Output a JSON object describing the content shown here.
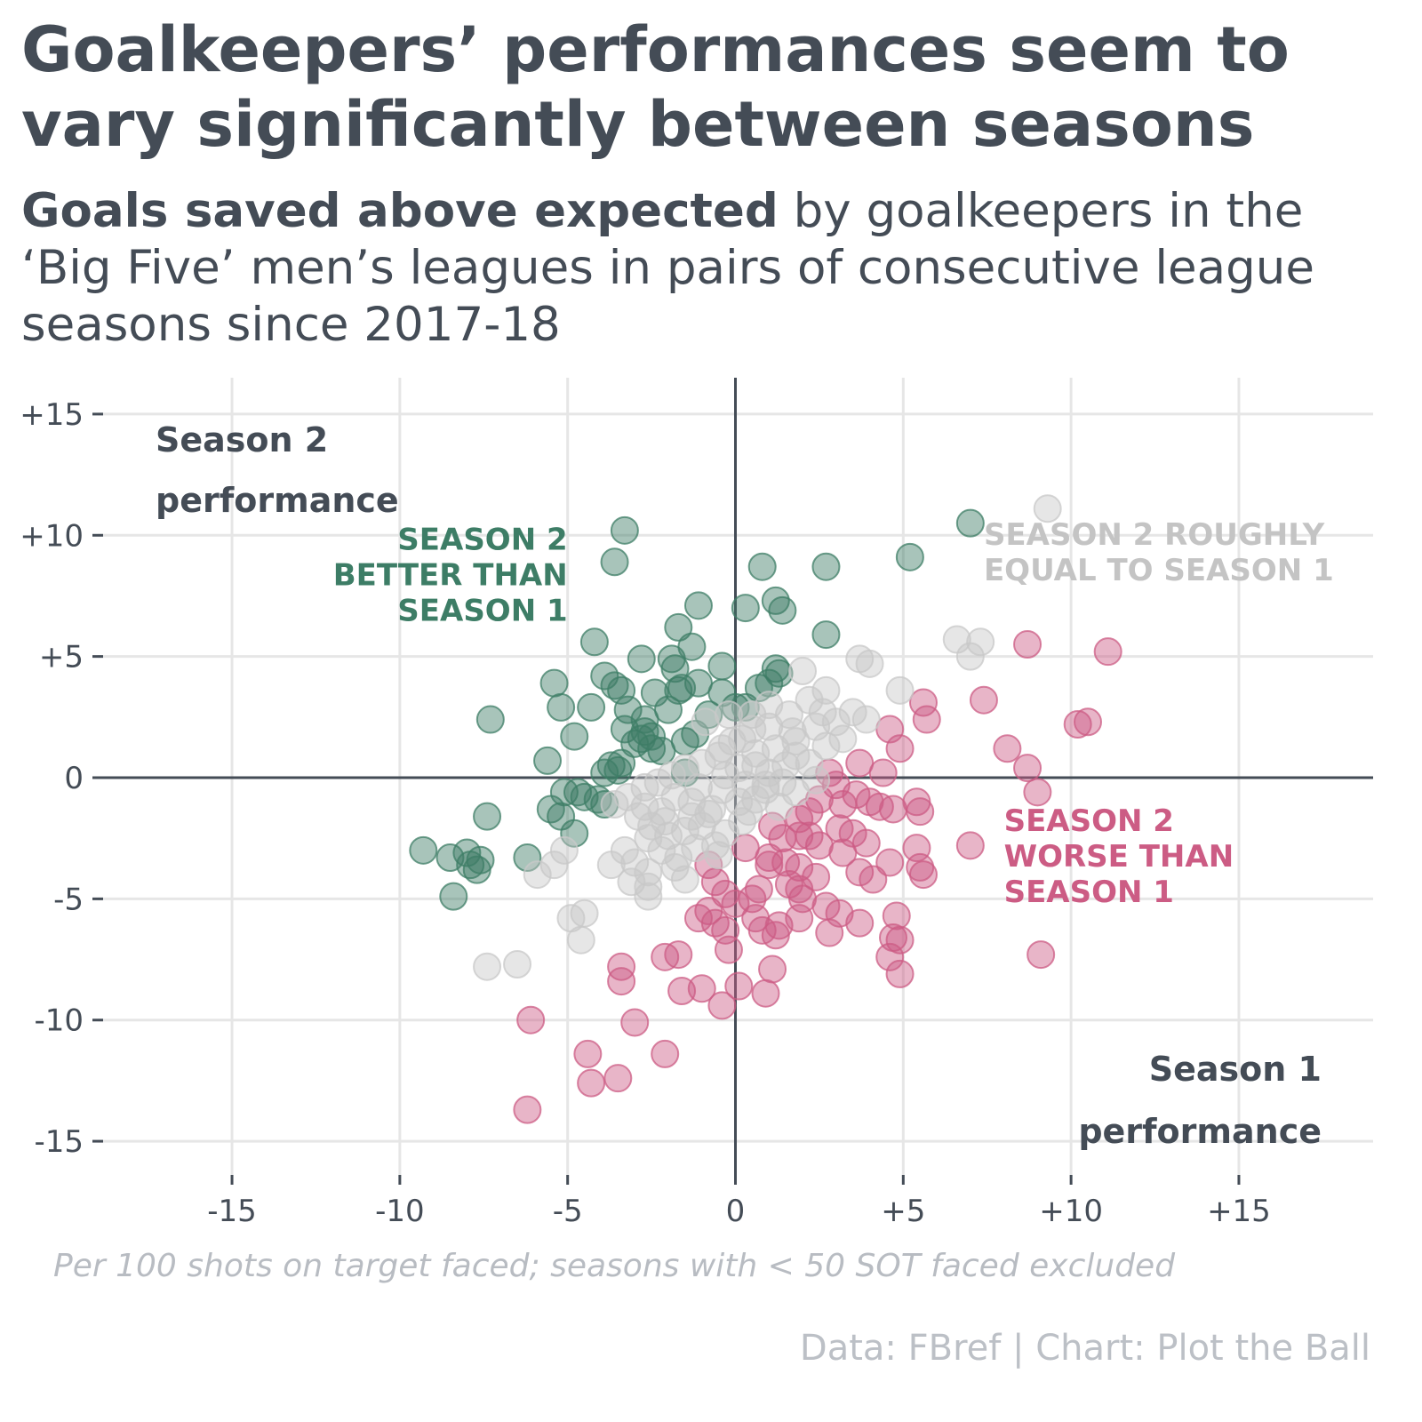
{
  "title": "Goalkeepers’ performances seem to vary significantly between seasons",
  "subtitle": {
    "bold": "Goals saved above expected",
    "rest": " by goalkeepers in the ‘Big Five’ men’s leagues in pairs of consecutive league seasons since 2017-18"
  },
  "note": "Per 100 shots on target faced; seasons with < 50 SOT faced excluded",
  "source": "Data: FBref | Chart: Plot the Ball",
  "colors": {
    "better": "#3d7d66",
    "worse": "#cc5c84",
    "equal": "#c8c8c8",
    "text": "#444c56",
    "grid": "#e6e6e6"
  },
  "chart_data": {
    "type": "scatter",
    "xlabel": "Season 1 performance",
    "ylabel": "Season 2 performance",
    "xlim": [
      -19,
      19
    ],
    "ylim": [
      -16.5,
      16.5
    ],
    "grid": true,
    "xticks": [
      -15,
      -10,
      -5,
      0,
      5,
      10,
      15
    ],
    "yticks": [
      15,
      10,
      5,
      0,
      -5,
      -10,
      -15
    ],
    "xtick_labels": [
      "-15",
      "-10",
      "-5",
      "0",
      "+5",
      "+10",
      "+15"
    ],
    "ytick_labels": [
      "+15",
      "+10",
      "+5",
      "0",
      "-5",
      "-10",
      "-15"
    ],
    "annotations": [
      {
        "text": "SEASON 2 BETTER THAN SEASON 1",
        "lines": [
          "SEASON 2",
          "BETTER THAN",
          "SEASON 1"
        ],
        "category": "better",
        "x": -5,
        "y": 9.4
      },
      {
        "text": "SEASON 2 ROUGHLY EQUAL TO SEASON 1",
        "lines": [
          "SEASON 2 ROUGHLY",
          "EQUAL TO SEASON 1"
        ],
        "category": "equal",
        "x": 7.4,
        "y": 9.6
      },
      {
        "text": "SEASON 2 WORSE THAN SEASON 1",
        "lines": [
          "SEASON 2",
          "WORSE THAN",
          "SEASON 1"
        ],
        "category": "worse",
        "x": 8,
        "y": -2.2
      }
    ],
    "series": [
      {
        "category": "better",
        "points": [
          [
            -3.3,
            10.2
          ],
          [
            -3.6,
            8.9
          ],
          [
            0.8,
            8.7
          ],
          [
            2.7,
            8.7
          ],
          [
            7.0,
            10.5
          ],
          [
            5.2,
            9.1
          ],
          [
            -1.1,
            7.1
          ],
          [
            0.3,
            7.0
          ],
          [
            1.2,
            7.3
          ],
          [
            1.4,
            6.9
          ],
          [
            -1.7,
            6.2
          ],
          [
            2.7,
            5.9
          ],
          [
            -4.2,
            5.6
          ],
          [
            -1.3,
            5.4
          ],
          [
            -2.8,
            4.9
          ],
          [
            -1.9,
            4.9
          ],
          [
            -0.4,
            4.6
          ],
          [
            -1.8,
            4.5
          ],
          [
            1.2,
            4.5
          ],
          [
            1.3,
            4.3
          ],
          [
            -5.4,
            3.9
          ],
          [
            -3.9,
            4.2
          ],
          [
            -3.6,
            3.8
          ],
          [
            -3.4,
            3.6
          ],
          [
            -1.1,
            3.9
          ],
          [
            0.7,
            3.7
          ],
          [
            1.0,
            3.9
          ],
          [
            -2.4,
            3.5
          ],
          [
            -1.7,
            3.6
          ],
          [
            -0.4,
            3.5
          ],
          [
            -5.2,
            2.9
          ],
          [
            -4.3,
            2.9
          ],
          [
            -3.2,
            2.8
          ],
          [
            -2.7,
            2.4
          ],
          [
            -2.0,
            2.8
          ],
          [
            -1.6,
            3.7
          ],
          [
            -0.8,
            2.6
          ],
          [
            0.0,
            2.9
          ],
          [
            0.3,
            2.9
          ],
          [
            -7.3,
            2.4
          ],
          [
            -4.8,
            1.7
          ],
          [
            -3.3,
            2.0
          ],
          [
            -2.7,
            1.9
          ],
          [
            -2.5,
            1.7
          ],
          [
            -3.0,
            1.4
          ],
          [
            -2.2,
            1.1
          ],
          [
            -1.5,
            1.5
          ],
          [
            -1.2,
            1.8
          ],
          [
            -5.6,
            0.7
          ],
          [
            -3.7,
            0.5
          ],
          [
            -3.4,
            0.6
          ],
          [
            -3.9,
            0.2
          ],
          [
            -1.5,
            0.2
          ],
          [
            -5.1,
            -0.6
          ],
          [
            -4.7,
            -0.6
          ],
          [
            -4.5,
            -0.8
          ],
          [
            -4.1,
            -0.9
          ],
          [
            -3.9,
            -1.1
          ],
          [
            -5.5,
            -1.3
          ],
          [
            -5.2,
            -1.6
          ],
          [
            -4.8,
            -2.3
          ],
          [
            -7.4,
            -1.6
          ],
          [
            -9.3,
            -3.0
          ],
          [
            -8.5,
            -3.3
          ],
          [
            -8.0,
            -3.1
          ],
          [
            -7.9,
            -3.6
          ],
          [
            -7.7,
            -3.8
          ],
          [
            -7.6,
            -3.4
          ],
          [
            -6.2,
            -3.3
          ],
          [
            -8.4,
            -4.9
          ],
          [
            -2.8,
            1.6
          ],
          [
            -2.5,
            1.2
          ],
          [
            -3.5,
            0.3
          ]
        ]
      },
      {
        "category": "worse",
        "points": [
          [
            8.7,
            5.5
          ],
          [
            11.1,
            5.2
          ],
          [
            7.4,
            3.2
          ],
          [
            5.6,
            3.1
          ],
          [
            5.7,
            2.4
          ],
          [
            8.1,
            1.2
          ],
          [
            10.2,
            2.2
          ],
          [
            10.5,
            2.3
          ],
          [
            4.6,
            2.0
          ],
          [
            4.9,
            1.2
          ],
          [
            8.7,
            0.4
          ],
          [
            9.0,
            -0.6
          ],
          [
            3.7,
            0.6
          ],
          [
            4.4,
            0.2
          ],
          [
            2.8,
            0.2
          ],
          [
            3.0,
            -0.3
          ],
          [
            2.5,
            -0.9
          ],
          [
            2.2,
            -1.4
          ],
          [
            1.9,
            -1.7
          ],
          [
            3.6,
            -0.7
          ],
          [
            3.2,
            -1.1
          ],
          [
            4.0,
            -1.0
          ],
          [
            4.3,
            -1.2
          ],
          [
            4.7,
            -1.3
          ],
          [
            5.4,
            -1.0
          ],
          [
            5.5,
            -1.4
          ],
          [
            1.1,
            -2.0
          ],
          [
            1.4,
            -2.5
          ],
          [
            1.9,
            -2.4
          ],
          [
            2.2,
            -2.4
          ],
          [
            3.1,
            -2.1
          ],
          [
            3.5,
            -2.3
          ],
          [
            3.9,
            -2.7
          ],
          [
            2.5,
            -2.8
          ],
          [
            3.2,
            -3.1
          ],
          [
            0.3,
            -2.9
          ],
          [
            1.0,
            -3.3
          ],
          [
            1.5,
            -3.5
          ],
          [
            1.9,
            -3.7
          ],
          [
            3.7,
            -3.9
          ],
          [
            4.1,
            -4.2
          ],
          [
            4.6,
            -3.5
          ],
          [
            5.4,
            -2.9
          ],
          [
            5.5,
            -3.7
          ],
          [
            5.6,
            -4.0
          ],
          [
            7.0,
            -2.8
          ],
          [
            -0.8,
            -3.6
          ],
          [
            -0.6,
            -4.3
          ],
          [
            -0.3,
            -4.8
          ],
          [
            0.0,
            -5.2
          ],
          [
            0.5,
            -5.0
          ],
          [
            0.7,
            -4.6
          ],
          [
            1.0,
            -3.6
          ],
          [
            1.6,
            -4.4
          ],
          [
            1.9,
            -4.6
          ],
          [
            2.4,
            -4.1
          ],
          [
            -0.8,
            -5.5
          ],
          [
            -1.1,
            -5.8
          ],
          [
            -0.6,
            -6.0
          ],
          [
            -0.3,
            -6.3
          ],
          [
            0.6,
            -5.8
          ],
          [
            0.8,
            -6.3
          ],
          [
            1.3,
            -6.1
          ],
          [
            1.9,
            -5.8
          ],
          [
            2.7,
            -5.3
          ],
          [
            3.1,
            -5.6
          ],
          [
            3.7,
            -6.0
          ],
          [
            4.8,
            -5.7
          ],
          [
            2.8,
            -6.4
          ],
          [
            4.7,
            -6.6
          ],
          [
            4.9,
            -6.7
          ],
          [
            4.6,
            -7.4
          ],
          [
            4.9,
            -8.1
          ],
          [
            9.1,
            -7.3
          ],
          [
            -0.2,
            -7.1
          ],
          [
            -1.7,
            -7.3
          ],
          [
            -2.1,
            -7.4
          ],
          [
            -3.4,
            -7.8
          ],
          [
            -3.4,
            -8.4
          ],
          [
            -1.6,
            -8.8
          ],
          [
            -1.0,
            -8.7
          ],
          [
            0.1,
            -8.6
          ],
          [
            0.9,
            -8.9
          ],
          [
            1.1,
            -7.9
          ],
          [
            -0.4,
            -9.4
          ],
          [
            -6.1,
            -10.0
          ],
          [
            -3.0,
            -10.1
          ],
          [
            -4.4,
            -11.4
          ],
          [
            -2.1,
            -11.4
          ],
          [
            -4.3,
            -12.6
          ],
          [
            -3.5,
            -12.4
          ],
          [
            -6.2,
            -13.7
          ],
          [
            1.2,
            -6.5
          ],
          [
            2.0,
            -5.0
          ]
        ]
      },
      {
        "category": "equal",
        "points": [
          [
            9.3,
            11.1
          ],
          [
            6.6,
            5.7
          ],
          [
            7.3,
            5.6
          ],
          [
            7.0,
            5.0
          ],
          [
            3.7,
            4.9
          ],
          [
            4.0,
            4.7
          ],
          [
            2.0,
            4.4
          ],
          [
            2.7,
            3.6
          ],
          [
            2.2,
            3.2
          ],
          [
            4.9,
            3.6
          ],
          [
            1.6,
            2.6
          ],
          [
            2.6,
            2.7
          ],
          [
            3.5,
            2.7
          ],
          [
            3.9,
            2.4
          ],
          [
            1.0,
            2.1
          ],
          [
            0.5,
            2.0
          ],
          [
            1.8,
            1.5
          ],
          [
            2.7,
            1.3
          ],
          [
            3.2,
            1.6
          ],
          [
            0.2,
            1.6
          ],
          [
            -0.1,
            1.5
          ],
          [
            -0.4,
            1.2
          ],
          [
            0.6,
            1.0
          ],
          [
            1.2,
            1.2
          ],
          [
            1.8,
            0.9
          ],
          [
            2.2,
            0.6
          ],
          [
            -0.5,
            0.9
          ],
          [
            -1.0,
            0.6
          ],
          [
            -1.5,
            0.4
          ],
          [
            -1.9,
            0.1
          ],
          [
            0.1,
            0.4
          ],
          [
            0.6,
            0.5
          ],
          [
            1.0,
            0.2
          ],
          [
            -0.3,
            0.1
          ],
          [
            -2.3,
            -0.2
          ],
          [
            -2.7,
            -0.4
          ],
          [
            -1.1,
            -0.4
          ],
          [
            -0.4,
            -0.5
          ],
          [
            0.3,
            -0.3
          ],
          [
            0.9,
            -0.5
          ],
          [
            1.4,
            -0.2
          ],
          [
            1.8,
            -0.6
          ],
          [
            -3.2,
            -0.8
          ],
          [
            -2.7,
            -1.2
          ],
          [
            -2.2,
            -1.4
          ],
          [
            -1.3,
            -1.0
          ],
          [
            -0.8,
            -1.5
          ],
          [
            0.1,
            -1.0
          ],
          [
            0.6,
            -0.9
          ],
          [
            1.3,
            -1.2
          ],
          [
            -2.9,
            -1.6
          ],
          [
            -2.5,
            -2.0
          ],
          [
            -2.0,
            -2.4
          ],
          [
            -1.5,
            -2.2
          ],
          [
            -1.0,
            -2.0
          ],
          [
            -0.3,
            -2.3
          ],
          [
            0.2,
            -1.8
          ],
          [
            -2.6,
            -2.5
          ],
          [
            -2.2,
            -3.0
          ],
          [
            -1.7,
            -3.3
          ],
          [
            -1.2,
            -2.9
          ],
          [
            -0.6,
            -2.8
          ],
          [
            -3.3,
            -3.0
          ],
          [
            -3.0,
            -3.5
          ],
          [
            -2.6,
            -3.9
          ],
          [
            -1.8,
            -3.7
          ],
          [
            -3.7,
            -3.6
          ],
          [
            -3.1,
            -4.3
          ],
          [
            -2.6,
            -4.5
          ],
          [
            -2.6,
            -4.9
          ],
          [
            -5.1,
            -3.0
          ],
          [
            -5.4,
            -3.6
          ],
          [
            -5.9,
            -4.0
          ],
          [
            -4.5,
            -5.6
          ],
          [
            -4.9,
            -5.8
          ],
          [
            -4.6,
            -6.7
          ],
          [
            -7.4,
            -7.8
          ],
          [
            -6.5,
            -7.7
          ],
          [
            -0.7,
            -1.3
          ],
          [
            -1.3,
            -1.6
          ],
          [
            0.4,
            -1.4
          ],
          [
            0.9,
            -0.3
          ],
          [
            1.5,
            0.5
          ],
          [
            2.4,
            -0.1
          ],
          [
            -0.9,
            2.3
          ],
          [
            -0.2,
            2.6
          ],
          [
            0.5,
            2.6
          ],
          [
            1.0,
            3.0
          ],
          [
            2.4,
            2.1
          ],
          [
            3.0,
            2.3
          ],
          [
            1.7,
            1.9
          ],
          [
            -1.8,
            -0.8
          ],
          [
            -3.6,
            -1.1
          ],
          [
            -2.1,
            -1.8
          ],
          [
            -0.5,
            -3.2
          ],
          [
            -1.5,
            -4.2
          ]
        ]
      }
    ]
  }
}
